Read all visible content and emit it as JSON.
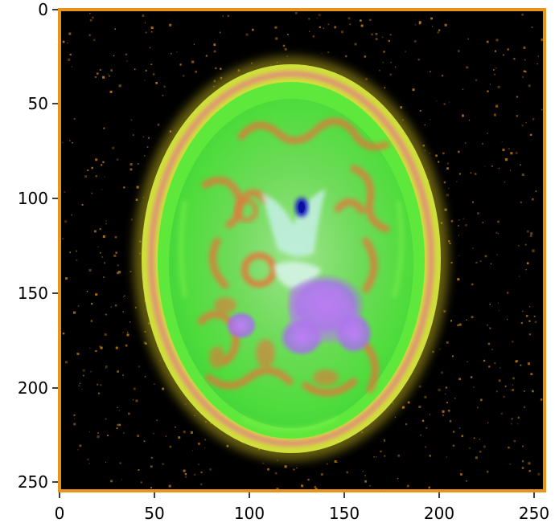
{
  "figure": {
    "type": "image",
    "xlim": [
      0,
      255
    ],
    "ylim": [
      255,
      0
    ],
    "x_ticks": [
      "0",
      "50",
      "100",
      "150",
      "200",
      "250"
    ],
    "y_ticks": [
      "0",
      "50",
      "100",
      "150",
      "200",
      "250"
    ],
    "frame_color": "#e8941c",
    "background_color": "#000000",
    "content": "axial-brain-mri-false-color"
  },
  "colors": {
    "skull_yellow": "#d6e23a",
    "brain_green": "#58e43c",
    "tissue_orange": "#e8733a",
    "ventricle_blue": "#1c22c8",
    "lesion_violet": "#b060ee",
    "speckle_orange": "#b97512"
  }
}
